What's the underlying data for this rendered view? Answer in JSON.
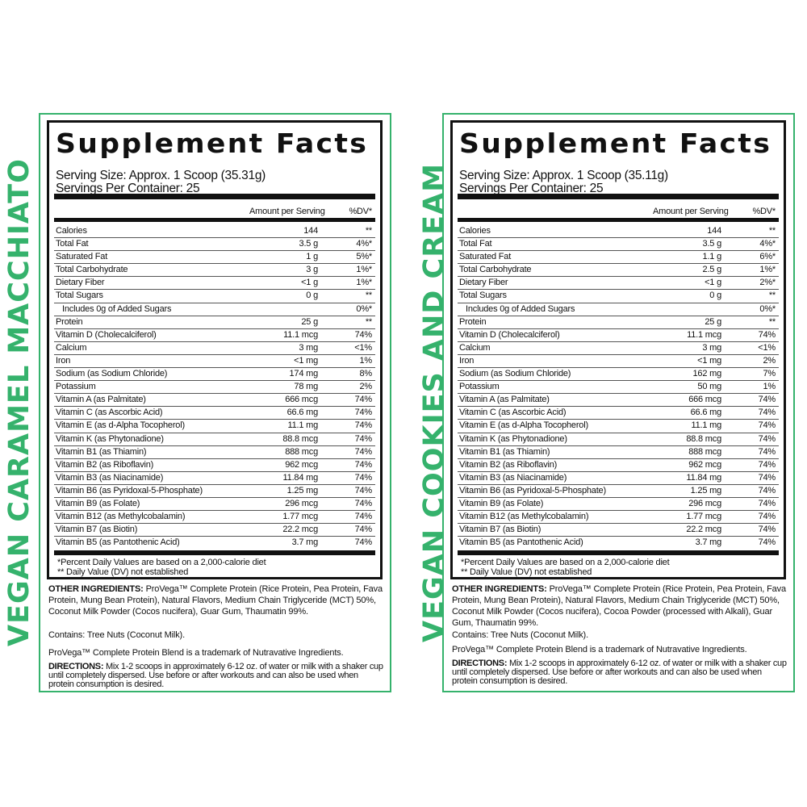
{
  "accent_color": "#35b26c",
  "panels": [
    {
      "flavor": "VEGAN CARAMEL MACCHIATO",
      "title": "Supplement Facts",
      "serving_size": "Serving Size: Approx. 1 Scoop (35.31g)",
      "servings_per_container": "Servings Per Container: 25",
      "col_amount": "Amount per Serving",
      "col_dv": "%DV*",
      "rows": [
        [
          "Calories",
          "144",
          "**"
        ],
        [
          "Total Fat",
          "3.5 g",
          "4%*"
        ],
        [
          "Saturated Fat",
          "1 g",
          "5%*"
        ],
        [
          "Total Carbohydrate",
          "3 g",
          "1%*"
        ],
        [
          "Dietary Fiber",
          "<1 g",
          "1%*"
        ],
        [
          "Total Sugars",
          "0 g",
          "**"
        ],
        [
          "Includes 0g of Added Sugars",
          "",
          "0%*"
        ],
        [
          "Protein",
          "25 g",
          "**"
        ],
        [
          "Vitamin D (Cholecalciferol)",
          "11.1 mcg",
          "74%"
        ],
        [
          "Calcium",
          "3 mg",
          "<1%"
        ],
        [
          "Iron",
          "<1 mg",
          "1%"
        ],
        [
          "Sodium (as Sodium Chloride)",
          "174 mg",
          "8%"
        ],
        [
          "Potassium",
          "78 mg",
          "2%"
        ],
        [
          "Vitamin A (as Palmitate)",
          "666 mcg",
          "74%"
        ],
        [
          "Vitamin C (as Ascorbic Acid)",
          "66.6 mg",
          "74%"
        ],
        [
          "Vitamin E (as d-Alpha Tocopherol)",
          "11.1 mg",
          "74%"
        ],
        [
          "Vitamin K (as Phytonadione)",
          "88.8 mcg",
          "74%"
        ],
        [
          "Vitamin B1 (as Thiamin)",
          "888 mcg",
          "74%"
        ],
        [
          "Vitamin B2 (as Riboflavin)",
          "962 mcg",
          "74%"
        ],
        [
          "Vitamin B3 (as Niacinamide)",
          "11.84 mg",
          "74%"
        ],
        [
          "Vitamin B6 (as Pyridoxal-5-Phosphate)",
          "1.25 mg",
          "74%"
        ],
        [
          "Vitamin B9 (as Folate)",
          "296 mcg",
          "74%"
        ],
        [
          "Vitamin B12 (as Methylcobalamin)",
          "1.77 mcg",
          "74%"
        ],
        [
          "Vitamin B7 (as Biotin)",
          "22.2 mcg",
          "74%"
        ],
        [
          "Vitamin B5 (as Pantothenic Acid)",
          "3.7 mg",
          "74%"
        ]
      ],
      "footnote1": "*Percent Daily Values are based on a 2,000-calorie diet",
      "footnote2": "** Daily Value (DV) not established",
      "other_label": "OTHER INGREDIENTS:",
      "other_text": " ProVega™ Complete Protein (Rice Protein, Pea Protein, Fava Protein, Mung Bean Protein), Natural Flavors, Medium Chain Triglyceride (MCT) 50%, Coconut Milk Powder (Cocos nucifera), Guar Gum, Thaumatin 99%.",
      "contains": "Contains: Tree Nuts (Coconut Milk).",
      "trademark": "ProVega™ Complete Protein Blend is a trademark of Nutravative Ingredients.",
      "directions_label": "DIRECTIONS:",
      "directions_text": " Mix 1-2 scoops in approximately 6-12 oz. of water or milk with a shaker cup until completely dispersed. Use before or after workouts and can also be used when protein consumption is desired."
    },
    {
      "flavor": "VEGAN COOKIES AND CREAM",
      "title": "Supplement Facts",
      "serving_size": "Serving Size: Approx. 1 Scoop (35.11g)",
      "servings_per_container": "Servings Per Container: 25",
      "col_amount": "Amount per Serving",
      "col_dv": "%DV*",
      "rows": [
        [
          "Calories",
          "144",
          "**"
        ],
        [
          "Total Fat",
          "3.5 g",
          "4%*"
        ],
        [
          "Saturated Fat",
          "1.1 g",
          "6%*"
        ],
        [
          "Total Carbohydrate",
          "2.5 g",
          "1%*"
        ],
        [
          "Dietary Fiber",
          "<1 g",
          "2%*"
        ],
        [
          "Total Sugars",
          "0 g",
          "**"
        ],
        [
          "Includes 0g of Added Sugars",
          "",
          "0%*"
        ],
        [
          "Protein",
          "25 g",
          "**"
        ],
        [
          "Vitamin D (Cholecalciferol)",
          "11.1 mcg",
          "74%"
        ],
        [
          "Calcium",
          "3 mg",
          "<1%"
        ],
        [
          "Iron",
          "<1 mg",
          "2%"
        ],
        [
          "Sodium (as Sodium Chloride)",
          "162 mg",
          "7%"
        ],
        [
          "Potassium",
          "50 mg",
          "1%"
        ],
        [
          "Vitamin A (as Palmitate)",
          "666 mcg",
          "74%"
        ],
        [
          "Vitamin C (as Ascorbic Acid)",
          "66.6 mg",
          "74%"
        ],
        [
          "Vitamin E (as d-Alpha Tocopherol)",
          "11.1 mg",
          "74%"
        ],
        [
          "Vitamin K (as Phytonadione)",
          "88.8 mcg",
          "74%"
        ],
        [
          "Vitamin B1 (as Thiamin)",
          "888 mcg",
          "74%"
        ],
        [
          "Vitamin B2 (as Riboflavin)",
          "962 mcg",
          "74%"
        ],
        [
          "Vitamin B3 (as Niacinamide)",
          "11.84 mg",
          "74%"
        ],
        [
          "Vitamin B6 (as Pyridoxal-5-Phosphate)",
          "1.25 mg",
          "74%"
        ],
        [
          "Vitamin B9 (as Folate)",
          "296 mcg",
          "74%"
        ],
        [
          "Vitamin B12 (as Methylcobalamin)",
          "1.77 mcg",
          "74%"
        ],
        [
          "Vitamin B7 (as Biotin)",
          "22.2 mcg",
          "74%"
        ],
        [
          "Vitamin B5 (as Pantothenic Acid)",
          "3.7 mg",
          "74%"
        ]
      ],
      "footnote1": "*Percent Daily Values are based on a 2,000-calorie diet",
      "footnote2": "** Daily Value (DV) not established",
      "other_label": "OTHER INGREDIENTS:",
      "other_text": " ProVega™ Complete Protein (Rice Protein, Pea Protein, Fava Protein, Mung Bean Protein), Natural Flavors, Medium Chain Triglyceride (MCT) 50%, Coconut Milk Powder (Cocos nucifera), Cocoa Powder (processed with Alkali), Guar Gum, Thaumatin 99%.",
      "contains": "Contains: Tree Nuts (Coconut Milk).",
      "trademark": "ProVega™ Complete Protein Blend is a trademark of Nutravative Ingredients.",
      "directions_label": "DIRECTIONS:",
      "directions_text": " Mix 1-2 scoops in approximately 6-12 oz. of water or milk with a shaker cup until completely dispersed. Use before or after workouts and can also be used when protein consumption is desired."
    }
  ]
}
